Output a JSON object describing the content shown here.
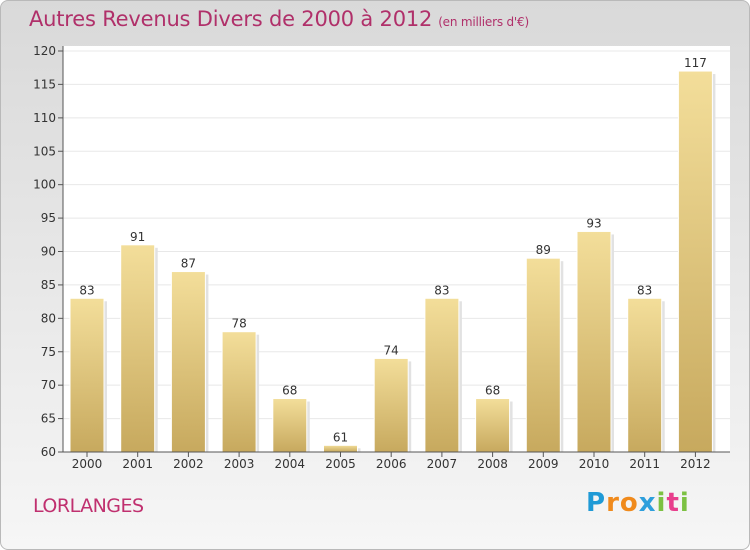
{
  "title": "Autres Revenus Divers de 2000 à 2012",
  "subtitle": "(en milliers d'€)",
  "place": "LORLANGES",
  "logo": [
    "P",
    "r",
    "o",
    "x",
    "i",
    "t",
    "i"
  ],
  "colors": {
    "title": "#b0306a",
    "bar_top": "#f3de9a",
    "bar_bottom": "#c7a95e",
    "axis": "#555555",
    "grid": "#e8e8e8"
  },
  "chart_data": {
    "type": "bar",
    "categories": [
      "2000",
      "2001",
      "2002",
      "2003",
      "2004",
      "2005",
      "2006",
      "2007",
      "2008",
      "2009",
      "2010",
      "2011",
      "2012"
    ],
    "values": [
      83,
      91,
      87,
      78,
      68,
      61,
      74,
      83,
      68,
      89,
      93,
      83,
      117
    ],
    "data_labels": [
      "83",
      "91",
      "87",
      "78",
      "68",
      "61",
      "74",
      "83",
      "68",
      "89",
      "93",
      "83",
      "117"
    ],
    "yticks": [
      "60",
      "65",
      "70",
      "75",
      "80",
      "85",
      "90",
      "95",
      "100",
      "105",
      "110",
      "115",
      "120"
    ],
    "ylim": [
      60,
      120
    ],
    "grid": true
  }
}
